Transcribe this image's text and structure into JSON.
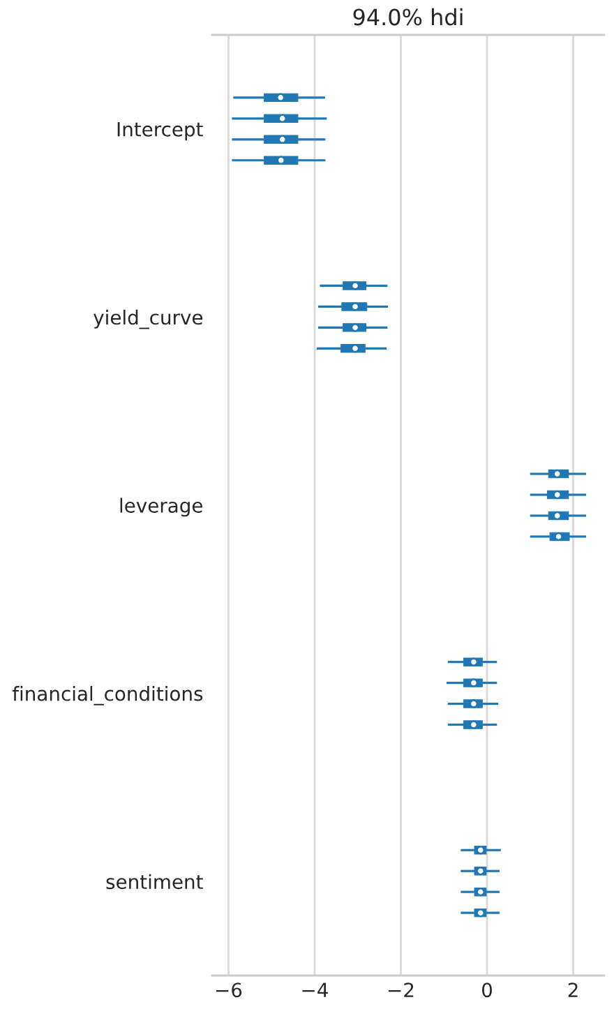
{
  "chart_data": {
    "type": "box",
    "title": "94.0% hdi",
    "orientation": "horizontal",
    "categories": [
      "Intercept",
      "yield_curve",
      "leverage",
      "financial_conditions",
      "sentiment"
    ],
    "series": [
      {
        "color": "#1f77b4",
        "boxes": [
          {
            "low": -5.89,
            "q1": -5.17,
            "median": -4.79,
            "mean": -4.79,
            "q3": -4.39,
            "high": -3.76
          },
          {
            "low": -3.88,
            "q1": -3.34,
            "median": -3.06,
            "mean": -3.06,
            "q3": -2.81,
            "high": -2.31
          },
          {
            "low": 1.0,
            "q1": 1.43,
            "median": 1.63,
            "mean": 1.63,
            "q3": 1.89,
            "high": 2.3
          },
          {
            "low": -0.91,
            "q1": -0.54,
            "median": -0.31,
            "mean": -0.31,
            "q3": -0.11,
            "high": 0.23
          },
          {
            "low": -0.61,
            "q1": -0.29,
            "median": -0.15,
            "mean": -0.15,
            "q3": -0.02,
            "high": 0.32
          }
        ]
      },
      {
        "color": "#1f77b4",
        "boxes": [
          {
            "low": -5.92,
            "q1": -5.17,
            "median": -4.75,
            "mean": -4.75,
            "q3": -4.39,
            "high": -3.72
          },
          {
            "low": -3.92,
            "q1": -3.37,
            "median": -3.06,
            "mean": -3.06,
            "q3": -2.79,
            "high": -2.3
          },
          {
            "low": 1.0,
            "q1": 1.4,
            "median": 1.63,
            "mean": 1.63,
            "q3": 1.89,
            "high": 2.3
          },
          {
            "low": -0.94,
            "q1": -0.54,
            "median": -0.31,
            "mean": -0.31,
            "q3": -0.11,
            "high": 0.23
          },
          {
            "low": -0.61,
            "q1": -0.29,
            "median": -0.15,
            "mean": -0.15,
            "q3": -0.02,
            "high": 0.29
          }
        ]
      },
      {
        "color": "#1f77b4",
        "boxes": [
          {
            "low": -5.92,
            "q1": -5.17,
            "median": -4.75,
            "mean": -4.75,
            "q3": -4.39,
            "high": -3.75
          },
          {
            "low": -3.92,
            "q1": -3.34,
            "median": -3.06,
            "mean": -3.06,
            "q3": -2.81,
            "high": -2.31
          },
          {
            "low": 1.0,
            "q1": 1.43,
            "median": 1.63,
            "mean": 1.63,
            "q3": 1.89,
            "high": 2.3
          },
          {
            "low": -0.91,
            "q1": -0.54,
            "median": -0.31,
            "mean": -0.31,
            "q3": -0.11,
            "high": 0.26
          },
          {
            "low": -0.61,
            "q1": -0.29,
            "median": -0.15,
            "mean": -0.15,
            "q3": -0.02,
            "high": 0.29
          }
        ]
      },
      {
        "color": "#1f77b4",
        "boxes": [
          {
            "low": -5.92,
            "q1": -5.17,
            "median": -4.78,
            "mean": -4.78,
            "q3": -4.39,
            "high": -3.75
          },
          {
            "low": -3.95,
            "q1": -3.39,
            "median": -3.06,
            "mean": -3.06,
            "q3": -2.83,
            "high": -2.33
          },
          {
            "low": 1.0,
            "q1": 1.46,
            "median": 1.66,
            "mean": 1.66,
            "q3": 1.91,
            "high": 2.3
          },
          {
            "low": -0.91,
            "q1": -0.54,
            "median": -0.31,
            "mean": -0.31,
            "q3": -0.11,
            "high": 0.23
          },
          {
            "low": -0.61,
            "q1": -0.29,
            "median": -0.15,
            "mean": -0.15,
            "q3": -0.02,
            "high": 0.29
          }
        ]
      }
    ],
    "xlim": [
      -6.38,
      2.72
    ],
    "xticks": [
      {
        "value": -6,
        "label": "−6"
      },
      {
        "value": -4,
        "label": "−4"
      },
      {
        "value": -2,
        "label": "−2"
      },
      0,
      2
    ],
    "grid": "x",
    "marker": "circle"
  }
}
